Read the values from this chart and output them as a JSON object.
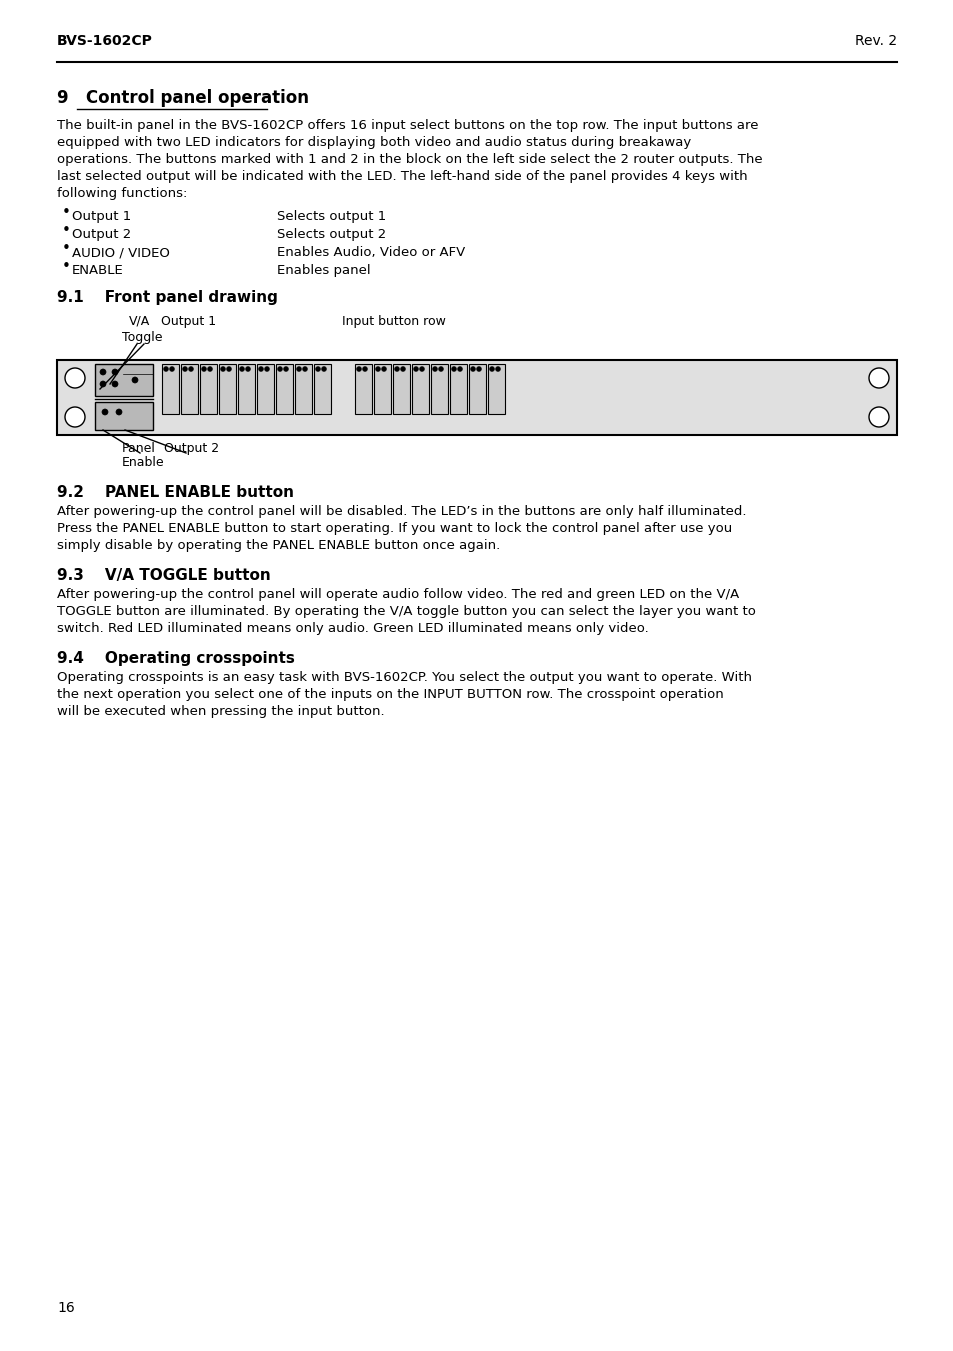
{
  "header_left": "BVS-1602CP",
  "header_right": "Rev. 2",
  "section9_title": "9   Control panel operation",
  "section9_body": "The built-in panel in the BVS-1602CP offers 16 input select buttons on the top row. The input buttons are\nequipped with two LED indicators for displaying both video and audio status during breakaway\noperations. The buttons marked with 1 and 2 in the block on the left side select the 2 router outputs. The\nlast selected output will be indicated with the LED. The left-hand side of the panel provides 4 keys with\nfollowing functions:",
  "bullets": [
    [
      "Output 1",
      "Selects output 1"
    ],
    [
      "Output 2",
      "Selects output 2"
    ],
    [
      "AUDIO / VIDEO",
      "Enables Audio, Video or AFV"
    ],
    [
      "ENABLE",
      "Enables panel"
    ]
  ],
  "section91_title": "9.1    Front panel drawing",
  "label_va": "V/A",
  "label_output1": "Output 1",
  "label_toggle": "Toggle",
  "label_input_row": "Input button row",
  "label_panel_enable_line1": "Panel",
  "label_panel_enable_line2": "Enable",
  "label_output2": "Output 2",
  "section92_title": "9.2    PANEL ENABLE button",
  "section92_body": "After powering-up the control panel will be disabled. The LED’s in the buttons are only half illuminated.\nPress the PANEL ENABLE button to start operating. If you want to lock the control panel after use you\nsimply disable by operating the PANEL ENABLE button once again.",
  "section93_title": "9.3    V/A TOGGLE button",
  "section93_body": "After powering-up the control panel will operate audio follow video. The red and green LED on the V/A\nTOGGLE button are illuminated. By operating the V/A toggle button you can select the layer you want to\nswitch. Red LED illuminated means only audio. Green LED illuminated means only video.",
  "section94_title": "9.4    Operating crosspoints",
  "section94_body": "Operating crosspoints is an easy task with BVS-1602CP. You select the output you want to operate. With\nthe next operation you select one of the inputs on the INPUT BUTTON row. The crosspoint operation\nwill be executed when pressing the input button.",
  "page_number": "16",
  "bg_color": "#ffffff",
  "text_color": "#000000"
}
